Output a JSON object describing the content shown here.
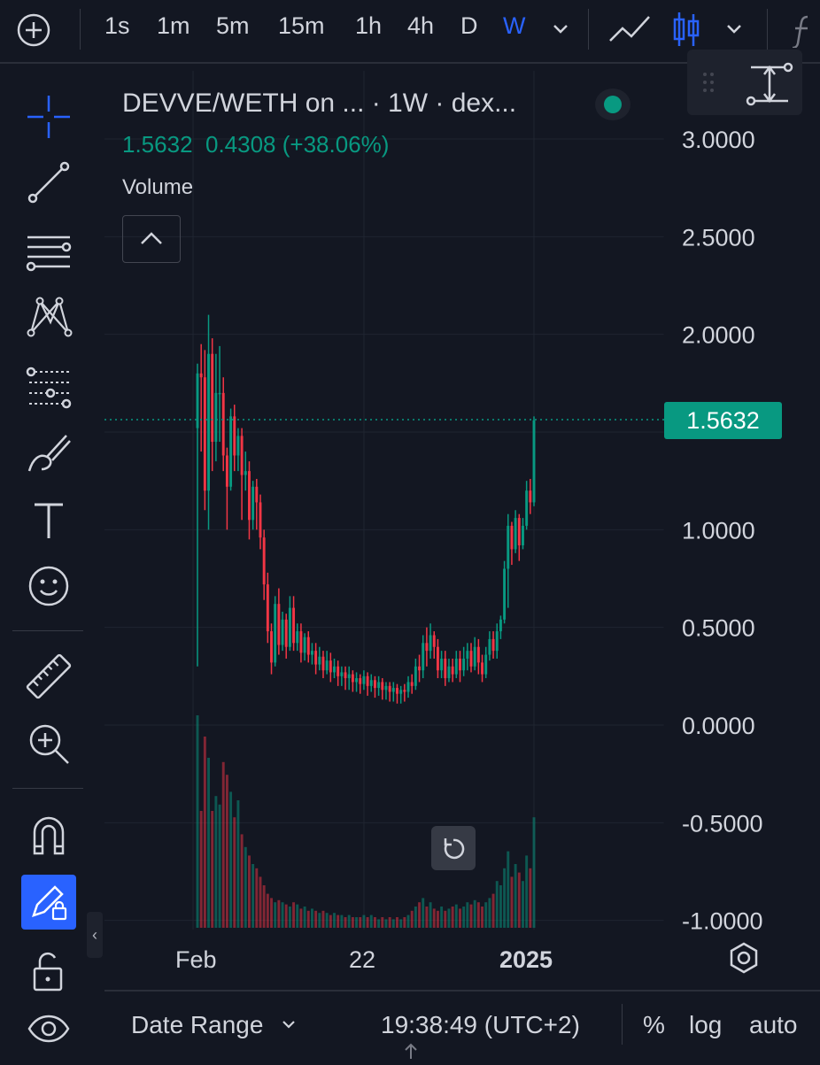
{
  "toolbar": {
    "intervals": [
      "1s",
      "1m",
      "5m",
      "15m",
      "1h",
      "4h",
      "D",
      "W"
    ],
    "active_interval": "W"
  },
  "legend": {
    "title": "DEVVE/WETH on ...  · 1W · dex...",
    "last": "1.5632",
    "change": "0.4308",
    "change_pct": "(+38.06%)",
    "volume_label": "Volume"
  },
  "price_tag": "1.5632",
  "bottom": {
    "date_range": "Date Range",
    "time": "19:38:49 (UTC+2)",
    "percent": "%",
    "log": "log",
    "auto": "auto"
  },
  "colors": {
    "up": "#089981",
    "down": "#f23645",
    "accent": "#2962ff",
    "background": "#131722"
  },
  "chart_data": {
    "type": "candlestick",
    "y_axis_ticks": [
      "3.0000",
      "2.5000",
      "2.0000",
      "1.5000",
      "1.0000",
      "0.5000",
      "0.0000",
      "-0.5000",
      "-1.0000"
    ],
    "ylim": [
      -1.0,
      3.0
    ],
    "x_axis_ticks": [
      "Feb",
      "22",
      "2025"
    ],
    "last_price": 1.5632,
    "candles": [
      [
        1.52,
        1.8,
        1.85,
        0.3
      ],
      [
        1.8,
        1.78,
        1.95,
        1.4
      ],
      [
        1.78,
        1.2,
        1.92,
        1.1
      ],
      [
        1.2,
        1.9,
        2.1,
        1.0
      ],
      [
        1.9,
        1.45,
        1.98,
        1.3
      ],
      [
        1.45,
        1.7,
        1.9,
        1.35
      ],
      [
        1.7,
        1.7,
        1.94,
        1.45
      ],
      [
        1.7,
        1.38,
        1.78,
        1.3
      ],
      [
        1.38,
        1.22,
        1.42,
        1.0
      ],
      [
        1.22,
        1.58,
        1.62,
        1.2
      ],
      [
        1.58,
        1.38,
        1.64,
        1.3
      ],
      [
        1.38,
        1.48,
        1.52,
        1.3
      ],
      [
        1.48,
        1.28,
        1.52,
        1.05
      ],
      [
        1.28,
        1.3,
        1.4,
        1.2
      ],
      [
        1.3,
        1.05,
        1.35,
        0.95
      ],
      [
        1.05,
        1.22,
        1.25,
        1.0
      ],
      [
        1.22,
        1.14,
        1.26,
        1.0
      ],
      [
        1.14,
        0.96,
        1.18,
        0.9
      ],
      [
        0.96,
        0.72,
        1.0,
        0.64
      ],
      [
        0.72,
        0.48,
        0.78,
        0.42
      ],
      [
        0.48,
        0.32,
        0.52,
        0.26
      ],
      [
        0.32,
        0.62,
        0.66,
        0.3
      ],
      [
        0.62,
        0.41,
        0.7,
        0.36
      ],
      [
        0.41,
        0.54,
        0.58,
        0.38
      ],
      [
        0.54,
        0.4,
        0.57,
        0.34
      ],
      [
        0.4,
        0.6,
        0.66,
        0.38
      ],
      [
        0.6,
        0.42,
        0.66,
        0.38
      ],
      [
        0.42,
        0.48,
        0.52,
        0.38
      ],
      [
        0.48,
        0.37,
        0.52,
        0.32
      ],
      [
        0.37,
        0.45,
        0.47,
        0.33
      ],
      [
        0.45,
        0.36,
        0.48,
        0.32
      ],
      [
        0.36,
        0.38,
        0.42,
        0.31
      ],
      [
        0.38,
        0.31,
        0.42,
        0.26
      ],
      [
        0.31,
        0.35,
        0.4,
        0.28
      ],
      [
        0.35,
        0.28,
        0.38,
        0.24
      ],
      [
        0.28,
        0.33,
        0.38,
        0.26
      ],
      [
        0.33,
        0.27,
        0.37,
        0.22
      ],
      [
        0.27,
        0.3,
        0.34,
        0.24
      ],
      [
        0.3,
        0.25,
        0.33,
        0.2
      ],
      [
        0.25,
        0.27,
        0.3,
        0.2
      ],
      [
        0.27,
        0.24,
        0.3,
        0.18
      ],
      [
        0.24,
        0.26,
        0.3,
        0.18
      ],
      [
        0.26,
        0.22,
        0.28,
        0.17
      ],
      [
        0.22,
        0.24,
        0.27,
        0.17
      ],
      [
        0.24,
        0.21,
        0.26,
        0.16
      ],
      [
        0.21,
        0.25,
        0.28,
        0.18
      ],
      [
        0.25,
        0.2,
        0.27,
        0.15
      ],
      [
        0.2,
        0.23,
        0.26,
        0.17
      ],
      [
        0.23,
        0.19,
        0.25,
        0.14
      ],
      [
        0.19,
        0.22,
        0.25,
        0.15
      ],
      [
        0.22,
        0.18,
        0.24,
        0.13
      ],
      [
        0.18,
        0.2,
        0.22,
        0.13
      ],
      [
        0.2,
        0.17,
        0.22,
        0.12
      ],
      [
        0.17,
        0.19,
        0.22,
        0.12
      ],
      [
        0.19,
        0.16,
        0.21,
        0.11
      ],
      [
        0.16,
        0.18,
        0.2,
        0.11
      ],
      [
        0.18,
        0.17,
        0.21,
        0.12
      ],
      [
        0.17,
        0.22,
        0.25,
        0.14
      ],
      [
        0.22,
        0.2,
        0.26,
        0.16
      ],
      [
        0.2,
        0.3,
        0.34,
        0.18
      ],
      [
        0.3,
        0.28,
        0.36,
        0.22
      ],
      [
        0.28,
        0.42,
        0.46,
        0.24
      ],
      [
        0.42,
        0.38,
        0.5,
        0.3
      ],
      [
        0.38,
        0.46,
        0.52,
        0.34
      ],
      [
        0.46,
        0.4,
        0.48,
        0.34
      ],
      [
        0.4,
        0.28,
        0.44,
        0.24
      ],
      [
        0.28,
        0.34,
        0.38,
        0.24
      ],
      [
        0.34,
        0.24,
        0.38,
        0.2
      ],
      [
        0.24,
        0.3,
        0.34,
        0.22
      ],
      [
        0.3,
        0.26,
        0.34,
        0.22
      ],
      [
        0.26,
        0.34,
        0.38,
        0.24
      ],
      [
        0.34,
        0.28,
        0.38,
        0.22
      ],
      [
        0.28,
        0.34,
        0.4,
        0.25
      ],
      [
        0.34,
        0.38,
        0.42,
        0.28
      ],
      [
        0.38,
        0.3,
        0.42,
        0.27
      ],
      [
        0.3,
        0.4,
        0.45,
        0.28
      ],
      [
        0.4,
        0.32,
        0.44,
        0.26
      ],
      [
        0.32,
        0.26,
        0.36,
        0.22
      ],
      [
        0.26,
        0.36,
        0.4,
        0.24
      ],
      [
        0.36,
        0.44,
        0.48,
        0.33
      ],
      [
        0.44,
        0.38,
        0.48,
        0.34
      ],
      [
        0.38,
        0.48,
        0.52,
        0.34
      ],
      [
        0.48,
        0.54,
        0.56,
        0.44
      ],
      [
        0.54,
        0.8,
        0.84,
        0.52
      ],
      [
        0.8,
        1.02,
        1.08,
        0.6
      ],
      [
        1.02,
        0.9,
        1.04,
        0.82
      ],
      [
        0.9,
        1.06,
        1.1,
        0.88
      ],
      [
        1.06,
        0.92,
        1.08,
        0.84
      ],
      [
        0.92,
        1.02,
        1.06,
        0.9
      ],
      [
        1.02,
        1.2,
        1.25,
        1.0
      ],
      [
        1.2,
        1.14,
        1.26,
        1.08
      ],
      [
        1.14,
        1.56,
        1.58,
        1.12
      ]
    ],
    "volume": [
      1.0,
      0.55,
      0.9,
      0.8,
      0.55,
      0.62,
      0.58,
      0.78,
      0.72,
      0.64,
      0.52,
      0.6,
      0.44,
      0.38,
      0.34,
      0.3,
      0.28,
      0.24,
      0.2,
      0.16,
      0.14,
      0.12,
      0.13,
      0.12,
      0.11,
      0.1,
      0.12,
      0.11,
      0.09,
      0.1,
      0.08,
      0.09,
      0.08,
      0.07,
      0.08,
      0.07,
      0.06,
      0.07,
      0.06,
      0.06,
      0.05,
      0.06,
      0.05,
      0.05,
      0.05,
      0.06,
      0.05,
      0.06,
      0.05,
      0.04,
      0.05,
      0.04,
      0.05,
      0.04,
      0.05,
      0.04,
      0.05,
      0.06,
      0.08,
      0.1,
      0.12,
      0.14,
      0.1,
      0.12,
      0.09,
      0.08,
      0.1,
      0.08,
      0.09,
      0.1,
      0.11,
      0.09,
      0.1,
      0.12,
      0.11,
      0.13,
      0.12,
      0.1,
      0.12,
      0.14,
      0.16,
      0.22,
      0.2,
      0.28,
      0.36,
      0.24,
      0.3,
      0.26,
      0.22,
      0.34,
      0.28,
      0.52
    ]
  }
}
